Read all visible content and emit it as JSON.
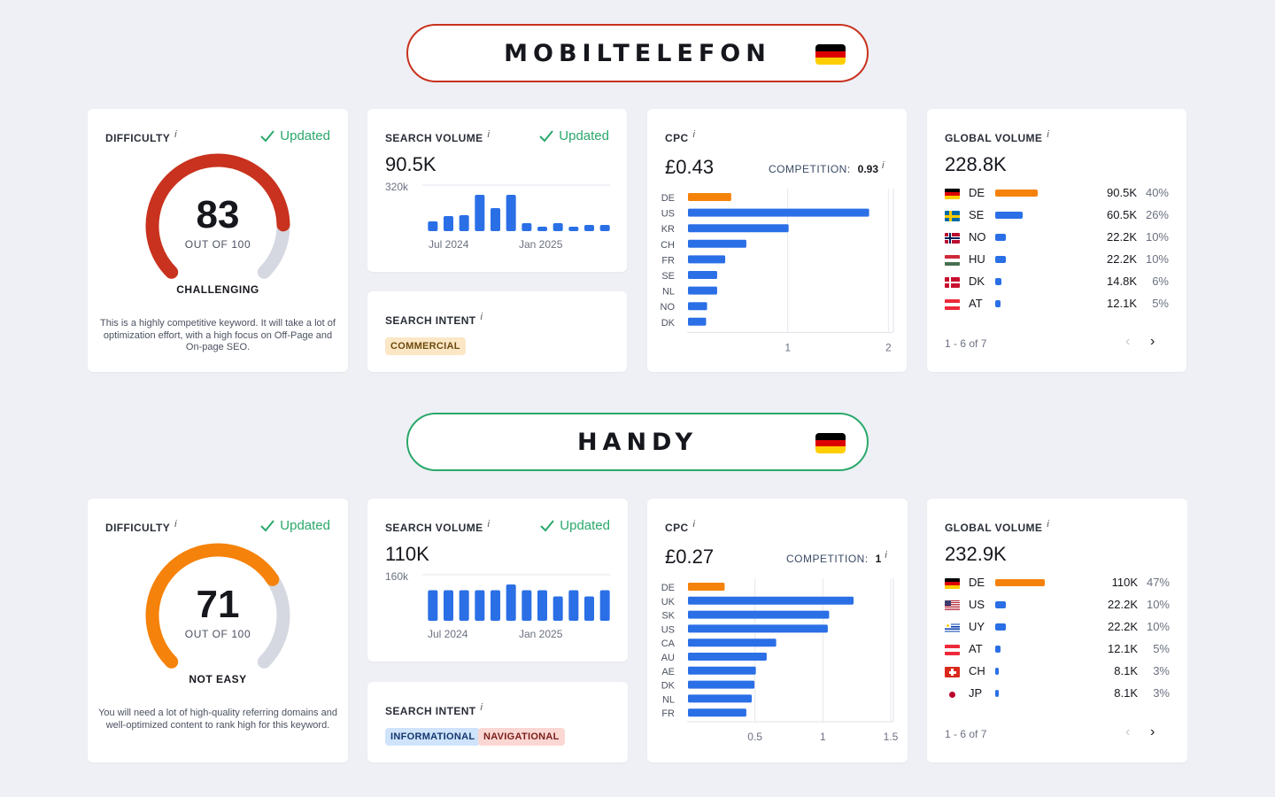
{
  "sections": [
    {
      "keyword": "MOBILTELEFON",
      "difficulty": {
        "title": "DIFFICULTY",
        "info": "i",
        "updated": "Updated",
        "value": "83",
        "out_of": "OUT OF 100",
        "level": "CHALLENGING",
        "fraction": 0.83,
        "color": "#c8321e",
        "description": "This is a highly competitive keyword. It will take a lot of optimization effort, with a high focus on Off-Page and On-page SEO."
      },
      "search_volume": {
        "title": "SEARCH VOLUME",
        "info": "i",
        "updated": "Updated",
        "value": "90.5K",
        "y_max_label": "320k",
        "x_labels": [
          "Jul 2024",
          "Jan 2025"
        ],
        "color": "#2a6fe6",
        "trend": [
          0.22,
          0.34,
          0.36,
          0.82,
          0.52,
          0.82,
          0.18,
          0.1,
          0.18,
          0.1,
          0.14,
          0.14
        ]
      },
      "search_intent": {
        "title": "SEARCH INTENT",
        "info": "i",
        "tags": [
          {
            "label": "COMMERCIAL",
            "kind": "commercial"
          }
        ]
      },
      "cpc": {
        "title": "CPC",
        "info": "i",
        "value": "£0.43",
        "competition_label": "COMPETITION:",
        "competition_value": "0.93",
        "chart_data": {
          "type": "bar",
          "orientation": "horizontal",
          "categories": [
            "DE",
            "US",
            "KR",
            "CH",
            "FR",
            "SE",
            "NL",
            "NO",
            "DK"
          ],
          "values": [
            0.43,
            1.8,
            1.0,
            0.58,
            0.37,
            0.29,
            0.29,
            0.19,
            0.18
          ],
          "xlim": [
            0,
            2.05
          ],
          "ticks": [
            1,
            2
          ],
          "tick_labels": [
            "1",
            "2"
          ],
          "highlight_color": "#f5820a",
          "bar_color": "#2a6fe6"
        }
      },
      "global_volume": {
        "title": "GLOBAL VOLUME",
        "info": "i",
        "value": "228.8K",
        "rows": [
          {
            "cc": "DE",
            "flag": "de",
            "volume": "90.5K",
            "pct": "40%",
            "share": 0.4,
            "highlight": true
          },
          {
            "cc": "SE",
            "flag": "se",
            "volume": "60.5K",
            "pct": "26%",
            "share": 0.26,
            "highlight": false
          },
          {
            "cc": "NO",
            "flag": "no",
            "volume": "22.2K",
            "pct": "10%",
            "share": 0.1,
            "highlight": false
          },
          {
            "cc": "HU",
            "flag": "hu",
            "volume": "22.2K",
            "pct": "10%",
            "share": 0.1,
            "highlight": false
          },
          {
            "cc": "DK",
            "flag": "dk",
            "volume": "14.8K",
            "pct": "6%",
            "share": 0.06,
            "highlight": false
          },
          {
            "cc": "AT",
            "flag": "at",
            "volume": "12.1K",
            "pct": "5%",
            "share": 0.05,
            "highlight": false
          }
        ],
        "pager": "1 - 6 of 7",
        "prev": "‹",
        "next": "›"
      }
    },
    {
      "keyword": "HANDY",
      "difficulty": {
        "title": "DIFFICULTY",
        "info": "i",
        "updated": "Updated",
        "value": "71",
        "out_of": "OUT OF 100",
        "level": "NOT EASY",
        "fraction": 0.71,
        "color": "#f5820a",
        "description": "You will need a lot of high-quality referring domains and well-optimized content to rank high for this keyword."
      },
      "search_volume": {
        "title": "SEARCH VOLUME",
        "info": "i",
        "updated": "Updated",
        "value": "110K",
        "y_max_label": "160k",
        "x_labels": [
          "Jul 2024",
          "Jan 2025"
        ],
        "color": "#2a6fe6",
        "trend": [
          0.69,
          0.69,
          0.69,
          0.69,
          0.69,
          0.82,
          0.69,
          0.69,
          0.55,
          0.69,
          0.55,
          0.69
        ]
      },
      "search_intent": {
        "title": "SEARCH INTENT",
        "info": "i",
        "tags": [
          {
            "label": "INFORMATIONAL",
            "kind": "informational"
          },
          {
            "label": "NAVIGATIONAL",
            "kind": "navigational"
          }
        ]
      },
      "cpc": {
        "title": "CPC",
        "info": "i",
        "value": "£0.27",
        "competition_label": "COMPETITION:",
        "competition_value": "1",
        "chart_data": {
          "type": "bar",
          "orientation": "horizontal",
          "categories": [
            "DE",
            "UK",
            "SK",
            "US",
            "CA",
            "AU",
            "AE",
            "DK",
            "NL",
            "FR"
          ],
          "values": [
            0.27,
            1.22,
            1.04,
            1.03,
            0.65,
            0.58,
            0.5,
            0.49,
            0.47,
            0.43
          ],
          "xlim": [
            0,
            1.52
          ],
          "ticks": [
            0.5,
            1,
            1.5
          ],
          "tick_labels": [
            "0.5",
            "1",
            "1.5"
          ],
          "highlight_color": "#f5820a",
          "bar_color": "#2a6fe6"
        }
      },
      "global_volume": {
        "title": "GLOBAL VOLUME",
        "info": "i",
        "value": "232.9K",
        "rows": [
          {
            "cc": "DE",
            "flag": "de",
            "volume": "110K",
            "pct": "47%",
            "share": 0.47,
            "highlight": true
          },
          {
            "cc": "US",
            "flag": "us",
            "volume": "22.2K",
            "pct": "10%",
            "share": 0.1,
            "highlight": false
          },
          {
            "cc": "UY",
            "flag": "uy",
            "volume": "22.2K",
            "pct": "10%",
            "share": 0.1,
            "highlight": false
          },
          {
            "cc": "AT",
            "flag": "at",
            "volume": "12.1K",
            "pct": "5%",
            "share": 0.05,
            "highlight": false
          },
          {
            "cc": "CH",
            "flag": "ch",
            "volume": "8.1K",
            "pct": "3%",
            "share": 0.03,
            "highlight": false
          },
          {
            "cc": "JP",
            "flag": "jp",
            "volume": "8.1K",
            "pct": "3%",
            "share": 0.03,
            "highlight": false
          }
        ],
        "pager": "1 - 6 of 7",
        "prev": "‹",
        "next": "›"
      }
    }
  ]
}
